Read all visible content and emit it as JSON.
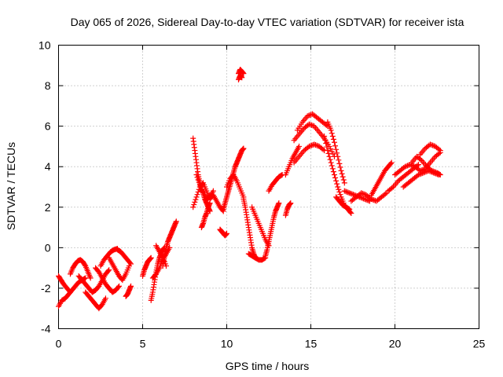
{
  "chart_data": {
    "type": "scatter",
    "title": "Day 065 of 2026, Sidereal Day-to-day VTEC variation (SDTVAR) for receiver ista",
    "xlabel": "GPS time / hours",
    "ylabel": "SDTVAR / TECUs",
    "xlim": [
      0,
      25
    ],
    "ylim": [
      -4,
      10
    ],
    "xticks": [
      0,
      5,
      10,
      15,
      20,
      25
    ],
    "yticks": [
      -4,
      -2,
      0,
      2,
      4,
      6,
      8,
      10
    ],
    "grid": true,
    "marker": "+",
    "color": "#ff0000",
    "segments": [
      {
        "x": [
          0.0,
          0.2,
          0.4,
          0.6,
          0.8,
          1.0,
          1.2,
          1.4,
          1.6
        ],
        "y": [
          -2.9,
          -2.6,
          -2.5,
          -2.3,
          -2.1,
          -1.9,
          -1.7,
          -1.6,
          -1.5
        ]
      },
      {
        "x": [
          0.0,
          0.15,
          0.3,
          0.5,
          0.7
        ],
        "y": [
          -1.4,
          -1.6,
          -1.8,
          -2.0,
          -2.2
        ]
      },
      {
        "x": [
          0.7,
          0.85,
          1.0,
          1.15,
          1.3,
          1.45,
          1.6,
          1.75,
          1.9
        ],
        "y": [
          -1.3,
          -1.0,
          -0.8,
          -0.65,
          -0.6,
          -0.7,
          -0.9,
          -1.2,
          -1.5
        ]
      },
      {
        "x": [
          1.2,
          1.4,
          1.6,
          1.8,
          2.0,
          2.2,
          2.4,
          2.6,
          2.8,
          3.0
        ],
        "y": [
          -1.4,
          -1.6,
          -1.8,
          -2.0,
          -2.2,
          -2.1,
          -1.9,
          -1.6,
          -1.3,
          -1.1
        ]
      },
      {
        "x": [
          1.6,
          1.8,
          2.0,
          2.2,
          2.4,
          2.6,
          2.8
        ],
        "y": [
          -2.2,
          -2.4,
          -2.6,
          -2.8,
          -3.0,
          -2.8,
          -2.5
        ]
      },
      {
        "x": [
          2.2,
          2.4,
          2.6,
          2.8,
          3.0,
          3.2,
          3.4,
          3.6
        ],
        "y": [
          -1.0,
          -1.2,
          -1.5,
          -1.8,
          -2.0,
          -2.2,
          -2.1,
          -1.9
        ]
      },
      {
        "x": [
          2.5,
          2.7,
          2.9,
          3.1,
          3.3,
          3.5
        ],
        "y": [
          -0.9,
          -0.6,
          -0.4,
          -0.2,
          -0.1,
          -0.05
        ]
      },
      {
        "x": [
          3.0,
          3.2,
          3.4,
          3.6,
          3.8,
          4.0,
          4.2
        ],
        "y": [
          -0.5,
          -0.8,
          -1.1,
          -1.4,
          -1.6,
          -1.3,
          -0.9
        ]
      },
      {
        "x": [
          3.5,
          3.7,
          3.9,
          4.1,
          4.3
        ],
        "y": [
          -0.1,
          -0.2,
          -0.4,
          -0.6,
          -0.8
        ]
      },
      {
        "x": [
          4.0,
          4.1,
          4.2,
          4.3
        ],
        "y": [
          -2.4,
          -2.3,
          -2.1,
          -1.9
        ]
      },
      {
        "x": [
          5.5,
          5.6,
          5.7,
          5.8,
          5.9,
          6.0,
          6.1,
          6.2,
          6.3
        ],
        "y": [
          -2.6,
          -2.2,
          -1.7,
          -1.2,
          -0.8,
          -0.5,
          -0.3,
          -0.1,
          0.0
        ]
      },
      {
        "x": [
          5.0,
          5.1,
          5.2,
          5.3,
          5.4,
          5.5
        ],
        "y": [
          -1.4,
          -1.1,
          -0.9,
          -0.7,
          -0.6,
          -0.5
        ]
      },
      {
        "x": [
          5.6,
          5.8,
          6.0,
          6.2,
          6.4,
          6.6
        ],
        "y": [
          -1.5,
          -1.3,
          -1.0,
          -0.6,
          -0.3,
          0.0
        ]
      },
      {
        "x": [
          6.2,
          6.3,
          6.4,
          6.5,
          6.6,
          6.7,
          6.8,
          6.9,
          7.0
        ],
        "y": [
          -0.9,
          -0.4,
          0.0,
          0.3,
          0.5,
          0.7,
          0.9,
          1.1,
          1.3
        ]
      },
      {
        "x": [
          5.8,
          6.0,
          6.2,
          6.4
        ],
        "y": [
          0.1,
          -0.2,
          -0.5,
          -0.9
        ]
      },
      {
        "x": [
          8.0,
          8.1,
          8.2,
          8.3,
          8.4,
          8.5,
          8.6,
          8.7,
          8.8,
          8.9,
          9.0
        ],
        "y": [
          5.4,
          4.8,
          4.2,
          3.6,
          3.2,
          2.9,
          2.7,
          2.4,
          2.2,
          2.0,
          1.8
        ]
      },
      {
        "x": [
          8.0,
          8.2,
          8.4,
          8.6,
          8.8,
          9.0,
          9.2,
          9.4,
          9.6,
          9.8
        ],
        "y": [
          2.0,
          2.5,
          3.0,
          3.2,
          2.8,
          2.4,
          2.6,
          2.3,
          2.0,
          1.8
        ]
      },
      {
        "x": [
          8.5,
          8.6,
          8.7,
          8.8,
          8.9,
          9.0
        ],
        "y": [
          1.0,
          1.2,
          1.5,
          1.7,
          2.0,
          2.2
        ]
      },
      {
        "x": [
          8.2,
          8.4,
          8.6,
          8.8,
          9.0,
          9.2
        ],
        "y": [
          3.6,
          3.1,
          2.7,
          2.4,
          2.5,
          2.8
        ]
      },
      {
        "x": [
          9.8,
          9.9,
          10.0,
          10.1,
          10.2,
          10.3,
          10.4,
          10.5,
          10.6,
          10.7,
          10.8,
          10.9,
          11.0
        ],
        "y": [
          1.9,
          2.2,
          2.5,
          2.8,
          3.1,
          3.4,
          3.7,
          4.0,
          4.2,
          4.4,
          4.6,
          4.8,
          4.9
        ]
      },
      {
        "x": [
          9.6,
          9.7,
          9.8,
          9.9,
          10.0
        ],
        "y": [
          0.9,
          0.8,
          0.7,
          0.6,
          0.7
        ]
      },
      {
        "x": [
          10.0,
          10.2,
          10.4,
          10.6,
          10.8,
          11.0
        ],
        "y": [
          3.0,
          3.4,
          3.6,
          3.3,
          2.9,
          2.5
        ]
      },
      {
        "x": [
          10.7,
          10.8,
          10.9,
          11.0
        ],
        "y": [
          8.6,
          8.8,
          8.7,
          8.6
        ]
      },
      {
        "x": [
          10.7,
          10.8,
          10.9
        ],
        "y": [
          8.3,
          8.5,
          8.4
        ]
      },
      {
        "x": [
          11.0,
          11.1,
          11.2,
          11.3,
          11.4,
          11.5,
          11.6,
          11.7
        ],
        "y": [
          2.4,
          2.0,
          1.5,
          1.0,
          0.5,
          0.0,
          -0.3,
          -0.5
        ]
      },
      {
        "x": [
          11.3,
          11.5,
          11.7,
          11.9,
          12.1,
          12.3
        ],
        "y": [
          -0.3,
          -0.4,
          -0.5,
          -0.6,
          -0.6,
          -0.5
        ]
      },
      {
        "x": [
          11.5,
          11.7,
          11.9,
          12.1,
          12.3,
          12.5
        ],
        "y": [
          2.0,
          1.6,
          1.2,
          0.8,
          0.4,
          0.1
        ]
      },
      {
        "x": [
          12.3,
          12.4,
          12.5,
          12.6,
          12.7,
          12.8,
          12.9,
          13.0,
          13.1
        ],
        "y": [
          -0.4,
          -0.1,
          0.3,
          0.7,
          1.1,
          1.5,
          1.8,
          2.0,
          2.2
        ]
      },
      {
        "x": [
          12.5,
          12.7,
          12.9,
          13.1,
          13.3
        ],
        "y": [
          2.8,
          3.1,
          3.3,
          3.5,
          3.6
        ]
      },
      {
        "x": [
          13.5,
          13.6,
          13.7,
          13.8
        ],
        "y": [
          1.6,
          1.9,
          2.1,
          2.2
        ]
      },
      {
        "x": [
          13.5,
          13.7,
          13.9,
          14.1,
          14.3
        ],
        "y": [
          3.6,
          4.0,
          4.4,
          4.7,
          5.0
        ]
      },
      {
        "x": [
          14.0,
          14.3,
          14.6,
          14.9,
          15.2,
          15.5,
          15.8,
          16.1,
          16.4
        ],
        "y": [
          5.3,
          5.6,
          5.9,
          6.1,
          6.0,
          5.7,
          5.4,
          5.0,
          4.5
        ]
      },
      {
        "x": [
          14.2,
          14.5,
          14.8,
          15.1,
          15.4,
          15.7,
          16.0
        ],
        "y": [
          5.8,
          6.2,
          6.5,
          6.6,
          6.4,
          6.2,
          6.0
        ]
      },
      {
        "x": [
          14.0,
          14.3,
          14.6,
          14.9,
          15.2,
          15.5,
          15.8
        ],
        "y": [
          4.2,
          4.5,
          4.8,
          5.0,
          5.1,
          5.0,
          4.8
        ]
      },
      {
        "x": [
          15.8,
          16.0,
          16.2,
          16.4,
          16.6,
          16.8,
          17.0,
          17.2,
          17.4
        ],
        "y": [
          5.5,
          4.8,
          4.2,
          3.6,
          3.0,
          2.5,
          2.1,
          1.9,
          1.7
        ]
      },
      {
        "x": [
          16.0,
          16.2,
          16.4,
          16.6,
          16.8,
          17.0
        ],
        "y": [
          6.2,
          5.8,
          5.2,
          4.5,
          3.8,
          3.2
        ]
      },
      {
        "x": [
          16.5,
          16.7,
          16.9,
          17.1,
          17.3
        ],
        "y": [
          2.5,
          2.3,
          2.1,
          2.0,
          1.9
        ]
      },
      {
        "x": [
          17.4,
          17.7,
          18.0,
          18.3,
          18.6,
          18.9,
          19.2,
          19.5
        ],
        "y": [
          2.3,
          2.5,
          2.7,
          2.6,
          2.4,
          2.3,
          2.5,
          2.7
        ]
      },
      {
        "x": [
          17.0,
          17.3,
          17.6,
          17.9,
          18.2,
          18.5
        ],
        "y": [
          2.8,
          2.7,
          2.6,
          2.5,
          2.4,
          2.3
        ]
      },
      {
        "x": [
          18.6,
          18.8,
          19.0,
          19.2,
          19.4,
          19.6,
          19.8
        ],
        "y": [
          2.6,
          2.9,
          3.2,
          3.5,
          3.8,
          4.0,
          4.2
        ]
      },
      {
        "x": [
          19.6,
          19.9,
          20.2,
          20.5,
          20.8,
          21.1,
          21.4
        ],
        "y": [
          2.8,
          3.0,
          3.3,
          3.5,
          3.7,
          3.9,
          4.1
        ]
      },
      {
        "x": [
          20.0,
          20.3,
          20.6,
          20.9,
          21.2,
          21.5,
          21.8,
          22.1,
          22.4,
          22.7
        ],
        "y": [
          3.6,
          3.8,
          4.0,
          4.1,
          4.0,
          3.8,
          3.9,
          4.2,
          4.5,
          4.7
        ]
      },
      {
        "x": [
          20.5,
          20.8,
          21.1,
          21.4,
          21.7,
          22.0,
          22.3,
          22.6
        ],
        "y": [
          3.0,
          3.2,
          3.4,
          3.6,
          3.7,
          3.8,
          3.7,
          3.6
        ]
      },
      {
        "x": [
          21.5,
          21.8,
          22.1,
          22.4,
          22.7
        ],
        "y": [
          4.6,
          4.9,
          5.1,
          5.0,
          4.8
        ]
      },
      {
        "x": [
          21.0,
          21.3,
          21.6,
          21.9,
          22.2,
          22.5,
          22.7
        ],
        "y": [
          4.2,
          4.5,
          4.3,
          4.0,
          3.8,
          3.7,
          3.6
        ]
      }
    ]
  }
}
